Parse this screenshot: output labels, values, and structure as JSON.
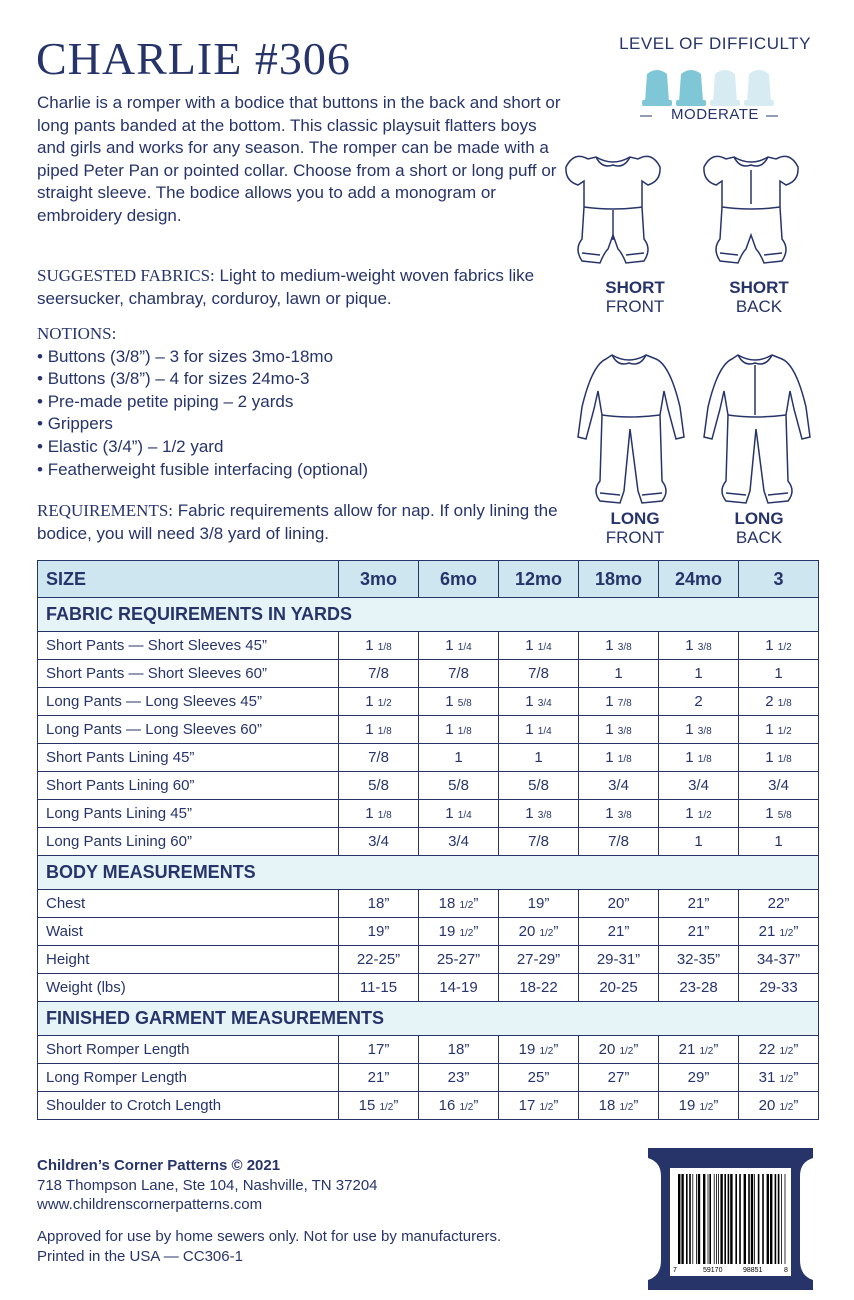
{
  "header": {
    "title": "CHARLIE #306"
  },
  "intro": "Charlie is a romper with a bodice that buttons in the back and short or long pants banded at the bottom. This classic playsuit flatters boys and girls and works for any season. The romper can be made with a piped Peter Pan or pointed collar. Choose from a short or long puff or straight sleeve. The bodice allows you to add a monogram or embroidery design.",
  "suggested_fabrics": {
    "label": "SUGGESTED FABRICS:",
    "text": "Light to medium-weight woven fabrics like seersucker, chambray, corduroy, lawn or pique."
  },
  "notions": {
    "label": "NOTIONS:",
    "items": [
      "Buttons (3/8”) – 3 for sizes 3mo-18mo",
      "Buttons (3/8”) – 4 for sizes 24mo-3",
      "Pre-made petite piping – 2 yards",
      "Grippers",
      "Elastic (3/4”) – 1/2 yard",
      "Featherweight fusible interfacing (optional)"
    ]
  },
  "requirements": {
    "label": "REQUIREMENTS:",
    "text": "Fabric requirements allow for nap. If only lining the bodice, you will need 3/8 yard of lining."
  },
  "difficulty": {
    "title": "LEVEL OF DIFFICULTY",
    "level": "MODERATE"
  },
  "views": [
    {
      "line1": "SHORT",
      "line2": "FRONT"
    },
    {
      "line1": "SHORT",
      "line2": "BACK"
    },
    {
      "line1": "LONG",
      "line2": "FRONT"
    },
    {
      "line1": "LONG",
      "line2": "BACK"
    }
  ],
  "table": {
    "header": [
      "SIZE",
      "3mo",
      "6mo",
      "12mo",
      "18mo",
      "24mo",
      "3"
    ],
    "sections": [
      {
        "title": "FABRIC REQUIREMENTS IN YARDS",
        "rows": [
          [
            "Short Pants — Short Sleeves 45”",
            "1 1/8",
            "1 1/4",
            "1 1/4",
            "1 3/8",
            "1 3/8",
            "1 1/2"
          ],
          [
            "Short Pants — Short Sleeves 60”",
            "7/8",
            "7/8",
            "7/8",
            "1",
            "1",
            "1"
          ],
          [
            "Long Pants — Long Sleeves 45”",
            "1 1/2",
            "1 5/8",
            "1 3/4",
            "1 7/8",
            "2",
            "2 1/8"
          ],
          [
            "Long Pants — Long Sleeves 60”",
            "1 1/8",
            "1 1/8",
            "1 1/4",
            "1 3/8",
            "1 3/8",
            "1 1/2"
          ],
          [
            "Short Pants Lining 45”",
            "7/8",
            "1",
            "1",
            "1 1/8",
            "1 1/8",
            "1 1/8"
          ],
          [
            "Short Pants Lining 60”",
            "5/8",
            "5/8",
            "5/8",
            "3/4",
            "3/4",
            "3/4"
          ],
          [
            "Long Pants Lining 45”",
            "1 1/8",
            "1 1/4",
            "1 3/8",
            "1 3/8",
            "1 1/2",
            "1 5/8"
          ],
          [
            "Long Pants Lining 60”",
            "3/4",
            "3/4",
            "7/8",
            "7/8",
            "1",
            "1"
          ]
        ]
      },
      {
        "title": "BODY MEASUREMENTS",
        "rows": [
          [
            "Chest",
            "18”",
            "18 1/2”",
            "19”",
            "20”",
            "21”",
            "22”"
          ],
          [
            "Waist",
            "19”",
            "19 1/2”",
            "20 1/2”",
            "21”",
            "21”",
            "21 1/2”"
          ],
          [
            "Height",
            "22-25”",
            "25-27”",
            "27-29”",
            "29-31”",
            "32-35”",
            "34-37”"
          ],
          [
            "Weight (lbs)",
            "11-15",
            "14-19",
            "18-22",
            "20-25",
            "23-28",
            "29-33"
          ]
        ]
      },
      {
        "title": "FINISHED GARMENT MEASUREMENTS",
        "rows": [
          [
            "Short Romper Length",
            "17”",
            "18”",
            "19 1/2”",
            "20 1/2”",
            "21 1/2”",
            "22 1/2”"
          ],
          [
            "Long Romper Length",
            "21”",
            "23”",
            "25”",
            "27”",
            "29”",
            "31 1/2”"
          ],
          [
            "Shoulder to Crotch Length",
            "15 1/2”",
            "16 1/2”",
            "17 1/2”",
            "18 1/2”",
            "19 1/2”",
            "20 1/2”"
          ]
        ]
      }
    ]
  },
  "footer": {
    "company": "Children’s Corner Patterns © 2021",
    "address": "718 Thompson Lane, Ste 104, Nashville, TN 37204",
    "website": "www.childrenscornerpatterns.com",
    "disclaimer": "Approved for use by home sewers only. Not for use by manufacturers.",
    "printed": "Printed in the USA — CC306-1"
  },
  "barcode": [
    "7",
    "59170",
    "98851",
    "8"
  ]
}
